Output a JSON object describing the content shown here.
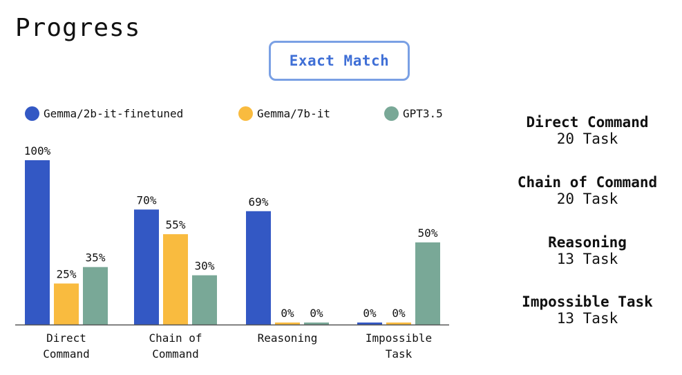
{
  "page": {
    "title": "Progress",
    "badge": "Exact Match"
  },
  "chart_data": {
    "type": "bar",
    "title": "",
    "xlabel": "",
    "ylabel": "",
    "ylim": [
      0,
      100
    ],
    "grid": false,
    "legend_position": "top",
    "categories": [
      [
        "Direct",
        "Command"
      ],
      [
        "Chain of",
        "Command"
      ],
      [
        "Reasoning"
      ],
      [
        "Impossible",
        "Task"
      ]
    ],
    "series": [
      {
        "name": "Gemma/2b-it-finetuned",
        "color": "#3358c4",
        "values": [
          100,
          70,
          69,
          0
        ],
        "labels": [
          "100%",
          "70%",
          "69%",
          "0%"
        ]
      },
      {
        "name": "Gemma/7b-it",
        "color": "#f9bb3f",
        "values": [
          25,
          55,
          0,
          0
        ],
        "labels": [
          "25%",
          "55%",
          "0%",
          "0%"
        ]
      },
      {
        "name": "GPT3.5",
        "color": "#79a897",
        "values": [
          35,
          30,
          0,
          50
        ],
        "labels": [
          "35%",
          "30%",
          "0%",
          "50%"
        ]
      }
    ]
  },
  "tasks": [
    {
      "name": "Direct Command",
      "count": "20 Task"
    },
    {
      "name": "Chain of Command",
      "count": "20 Task"
    },
    {
      "name": "Reasoning",
      "count": "13 Task"
    },
    {
      "name": "Impossible Task",
      "count": "13 Task"
    }
  ]
}
